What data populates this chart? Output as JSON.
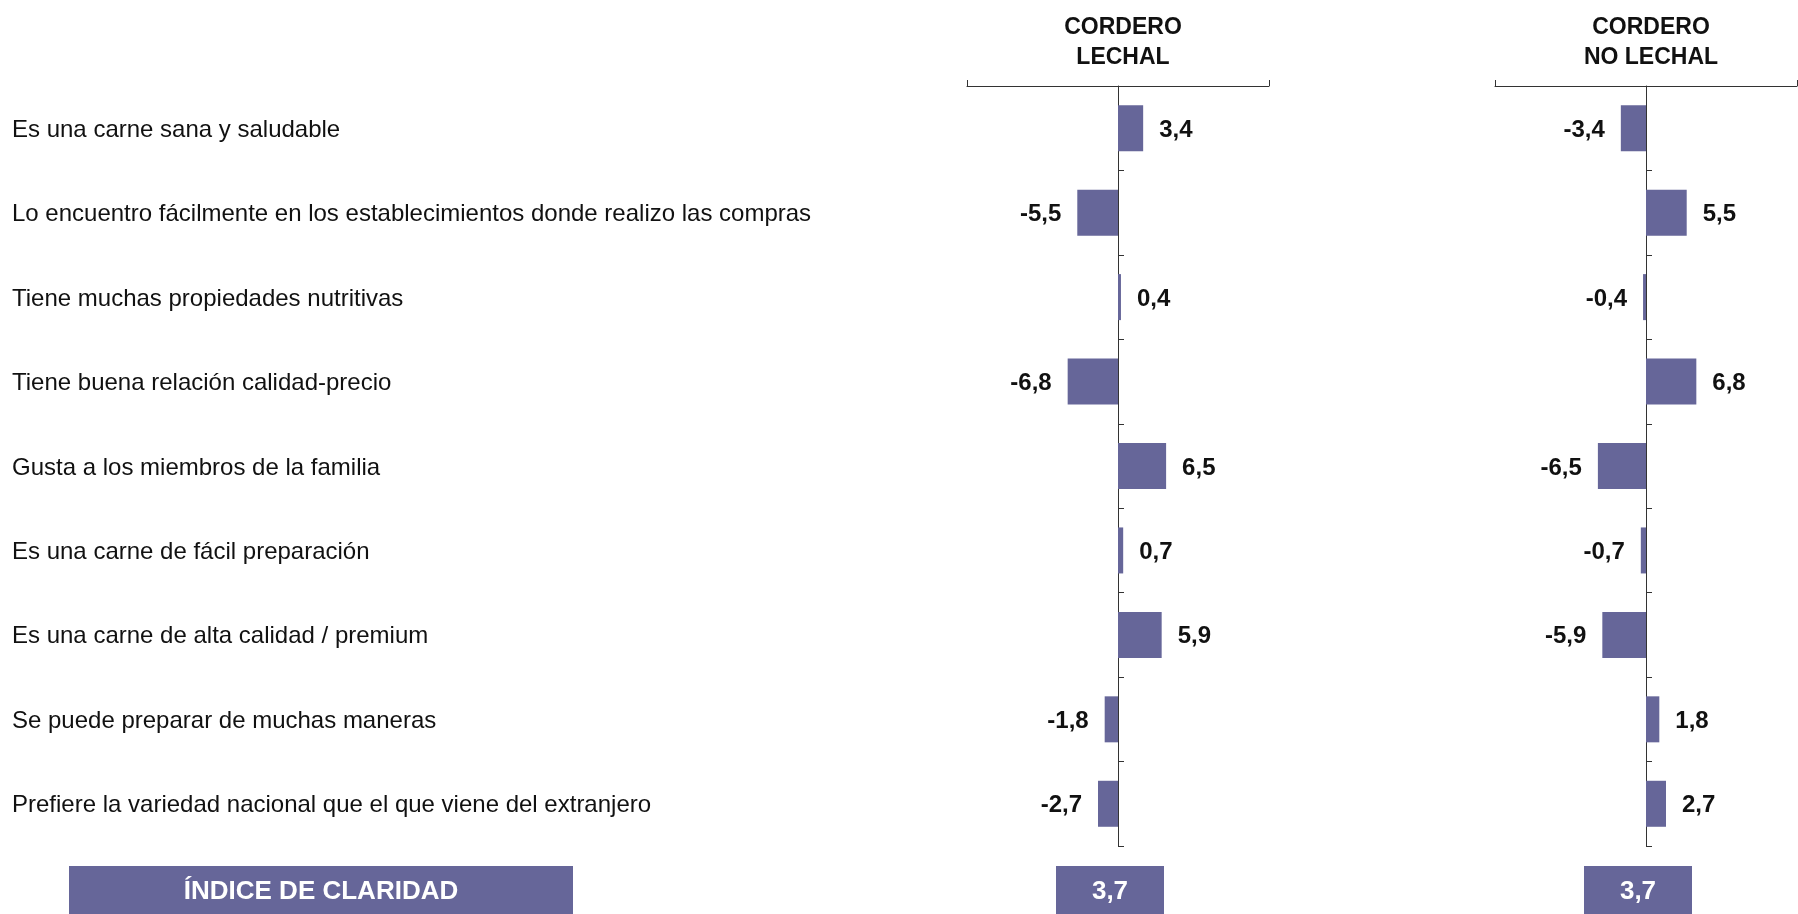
{
  "chart_data": [
    {
      "type": "bar",
      "orientation": "horizontal",
      "title": "CORDERO\nLECHAL",
      "categories": [
        "Es una carne sana y saludable",
        "Lo encuentro fácilmente en los establecimientos donde realizo las compras",
        "Tiene muchas propiedades nutritivas",
        "Tiene buena relación calidad-precio",
        "Gusta a los miembros de la familia",
        "Es una carne de fácil preparación",
        "Es una carne de alta calidad / premium",
        "Se puede preparar de muchas maneras",
        "Prefiere la variedad nacional que el que viene del extranjero"
      ],
      "values": [
        3.4,
        -5.5,
        0.4,
        -6.8,
        6.5,
        0.7,
        5.9,
        -1.8,
        -2.7
      ],
      "color": "#666699",
      "value_labels": [
        "3,4",
        "-5,5",
        "0,4",
        "-6,8",
        "6,5",
        "0,7",
        "5,9",
        "-1,8",
        "-2,7"
      ],
      "tick_labels": "y",
      "annotations": [
        "ÍNDICE DE CLARIDAD",
        "3,7"
      ]
    },
    {
      "type": "bar",
      "orientation": "horizontal",
      "title": "CORDERO\nNO LECHAL",
      "categories": [
        null,
        null,
        null,
        null,
        null,
        null,
        null,
        null,
        null
      ],
      "values": [
        -3.4,
        5.5,
        -0.4,
        6.8,
        -6.5,
        -0.7,
        -5.9,
        1.8,
        2.7
      ],
      "color": "#666699",
      "value_labels": [
        "-3,4",
        "5,5",
        "-0,4",
        "6,8",
        "-6,5",
        "-0,7",
        "-5,9",
        "1,8",
        "2,7"
      ],
      "tick_labels": false,
      "annotations": [
        "3,7"
      ]
    }
  ]
}
